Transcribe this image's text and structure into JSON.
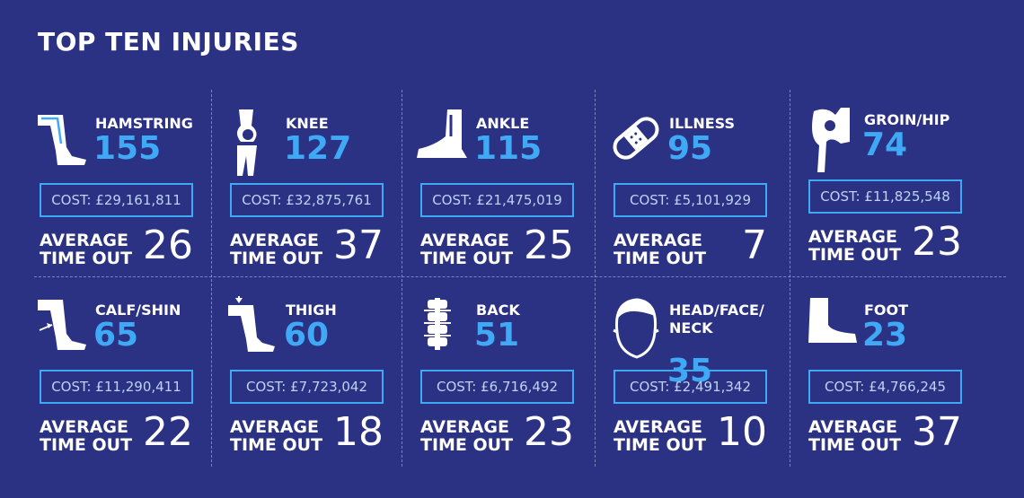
{
  "title": "TOP TEN INJURIES",
  "cost_prefix": "COST: ",
  "average_label": "AVERAGE\nTIME OUT",
  "colors": {
    "background": "#2b3183",
    "accent": "#3fa9f5",
    "text": "#ffffff"
  },
  "injuries": [
    {
      "name": "HAMSTRING",
      "count": "155",
      "cost": "£29,161,811",
      "avg": "26",
      "icon": "hamstring-leg-icon"
    },
    {
      "name": "KNEE",
      "count": "127",
      "cost": "£32,875,761",
      "avg": "37",
      "icon": "knee-joint-icon"
    },
    {
      "name": "ANKLE",
      "count": "115",
      "cost": "£21,475,019",
      "avg": "25",
      "icon": "ankle-foot-icon"
    },
    {
      "name": "ILLNESS",
      "count": "95",
      "cost": "£5,101,929",
      "avg": "7",
      "icon": "bandage-icon"
    },
    {
      "name": "GROIN/HIP",
      "count": "74",
      "cost": "£11,825,548",
      "avg": "23",
      "icon": "hip-bone-icon"
    },
    {
      "name": "CALF/SHIN",
      "count": "65",
      "cost": "£11,290,411",
      "avg": "22",
      "icon": "calf-leg-icon"
    },
    {
      "name": "THIGH",
      "count": "60",
      "cost": "£7,723,042",
      "avg": "18",
      "icon": "thigh-leg-icon"
    },
    {
      "name": "BACK",
      "count": "51",
      "cost": "£6,716,492",
      "avg": "23",
      "icon": "spine-icon"
    },
    {
      "name": "HEAD/FACE/\nNECK",
      "count": "35",
      "cost": "£2,491,342",
      "avg": "10",
      "icon": "head-icon"
    },
    {
      "name": "FOOT",
      "count": "23",
      "cost": "£4,766,245",
      "avg": "37",
      "icon": "foot-icon"
    }
  ]
}
